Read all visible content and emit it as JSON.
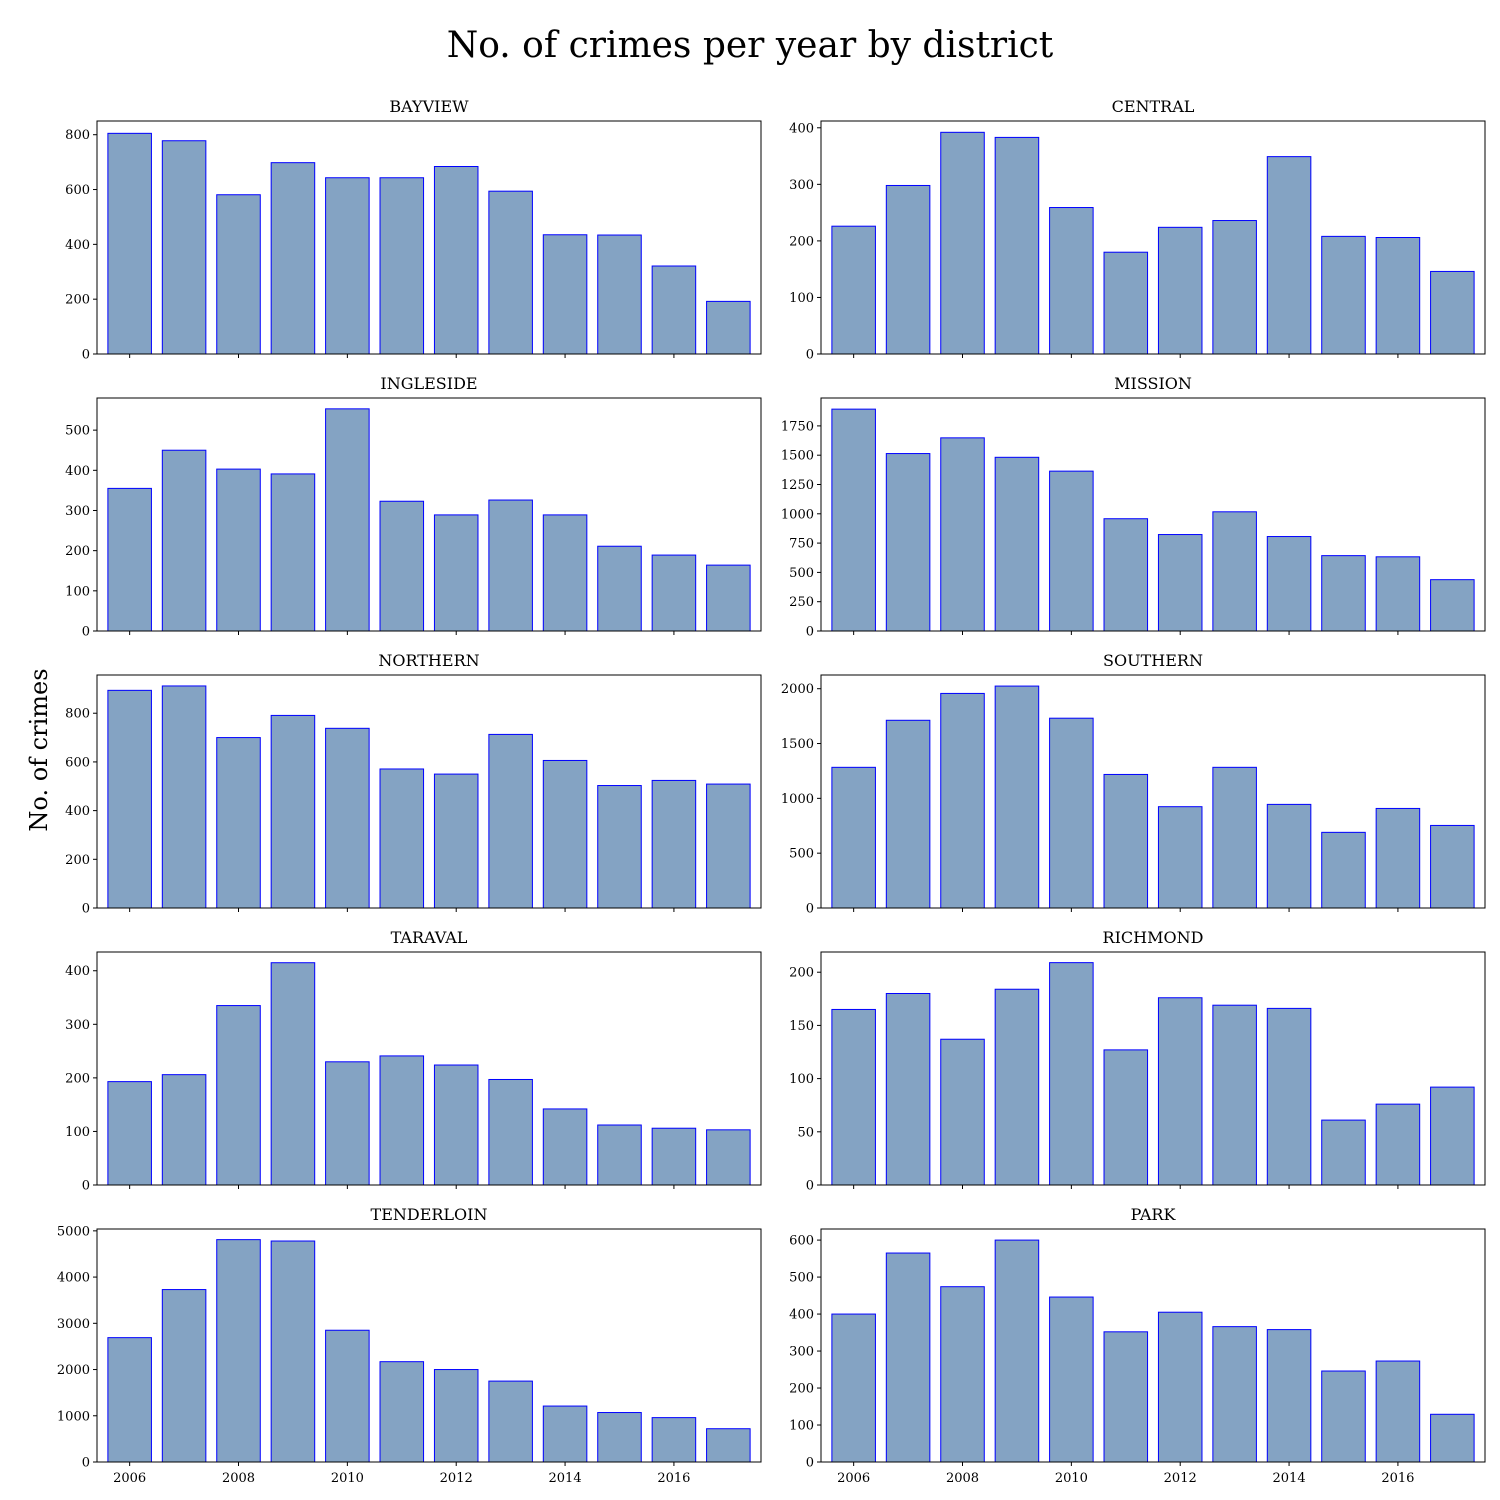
{
  "figure": {
    "title": "No. of crimes per year by district",
    "ylabel": "No. of crimes",
    "bar_fill": "#84a3c3",
    "bar_edge": "#0000ff"
  },
  "chart_data": [
    {
      "type": "bar",
      "title": "BAYVIEW",
      "x": [
        2006,
        2007,
        2008,
        2009,
        2010,
        2011,
        2012,
        2013,
        2014,
        2015,
        2016,
        2017
      ],
      "values": [
        805,
        778,
        581,
        698,
        643,
        643,
        684,
        594,
        435,
        434,
        321,
        192
      ],
      "ylim": [
        0,
        850
      ],
      "yticks": [
        0,
        200,
        400,
        600,
        800
      ],
      "xticks": [
        2006,
        2008,
        2010,
        2012,
        2014,
        2016
      ],
      "show_xtick_labels": false
    },
    {
      "type": "bar",
      "title": "CENTRAL",
      "x": [
        2006,
        2007,
        2008,
        2009,
        2010,
        2011,
        2012,
        2013,
        2014,
        2015,
        2016,
        2017
      ],
      "values": [
        226,
        298,
        392,
        383,
        259,
        180,
        224,
        236,
        349,
        208,
        206,
        146
      ],
      "ylim": [
        0,
        412
      ],
      "yticks": [
        0,
        100,
        200,
        300,
        400
      ],
      "xticks": [
        2006,
        2008,
        2010,
        2012,
        2014,
        2016
      ],
      "show_xtick_labels": false
    },
    {
      "type": "bar",
      "title": "INGLESIDE",
      "x": [
        2006,
        2007,
        2008,
        2009,
        2010,
        2011,
        2012,
        2013,
        2014,
        2015,
        2016,
        2017
      ],
      "values": [
        355,
        450,
        403,
        391,
        553,
        323,
        289,
        326,
        289,
        211,
        189,
        164
      ],
      "ylim": [
        0,
        580
      ],
      "yticks": [
        0,
        100,
        200,
        300,
        400,
        500
      ],
      "xticks": [
        2006,
        2008,
        2010,
        2012,
        2014,
        2016
      ],
      "show_xtick_labels": false
    },
    {
      "type": "bar",
      "title": "MISSION",
      "x": [
        2006,
        2007,
        2008,
        2009,
        2010,
        2011,
        2012,
        2013,
        2014,
        2015,
        2016,
        2017
      ],
      "values": [
        1893,
        1514,
        1648,
        1482,
        1364,
        958,
        823,
        1017,
        806,
        643,
        633,
        438
      ],
      "ylim": [
        0,
        1988
      ],
      "yticks": [
        0,
        250,
        500,
        750,
        1000,
        1250,
        1500,
        1750
      ],
      "xticks": [
        2006,
        2008,
        2010,
        2012,
        2014,
        2016
      ],
      "show_xtick_labels": false
    },
    {
      "type": "bar",
      "title": "NORTHERN",
      "x": [
        2006,
        2007,
        2008,
        2009,
        2010,
        2011,
        2012,
        2013,
        2014,
        2015,
        2016,
        2017
      ],
      "values": [
        894,
        912,
        700,
        791,
        738,
        571,
        550,
        713,
        606,
        503,
        524,
        509
      ],
      "ylim": [
        0,
        957
      ],
      "yticks": [
        0,
        200,
        400,
        600,
        800
      ],
      "xticks": [
        2006,
        2008,
        2010,
        2012,
        2014,
        2016
      ],
      "show_xtick_labels": false
    },
    {
      "type": "bar",
      "title": "SOUTHERN",
      "x": [
        2006,
        2007,
        2008,
        2009,
        2010,
        2011,
        2012,
        2013,
        2014,
        2015,
        2016,
        2017
      ],
      "values": [
        1283,
        1712,
        1957,
        2024,
        1731,
        1218,
        924,
        1283,
        945,
        690,
        908,
        753
      ],
      "ylim": [
        0,
        2125
      ],
      "yticks": [
        0,
        500,
        1000,
        1500,
        2000
      ],
      "xticks": [
        2006,
        2008,
        2010,
        2012,
        2014,
        2016
      ],
      "show_xtick_labels": false
    },
    {
      "type": "bar",
      "title": "TARAVAL",
      "x": [
        2006,
        2007,
        2008,
        2009,
        2010,
        2011,
        2012,
        2013,
        2014,
        2015,
        2016,
        2017
      ],
      "values": [
        193,
        206,
        335,
        415,
        230,
        241,
        224,
        197,
        142,
        112,
        106,
        103
      ],
      "ylim": [
        0,
        435
      ],
      "yticks": [
        0,
        100,
        200,
        300,
        400
      ],
      "xticks": [
        2006,
        2008,
        2010,
        2012,
        2014,
        2016
      ],
      "show_xtick_labels": false
    },
    {
      "type": "bar",
      "title": "RICHMOND",
      "x": [
        2006,
        2007,
        2008,
        2009,
        2010,
        2011,
        2012,
        2013,
        2014,
        2015,
        2016,
        2017
      ],
      "values": [
        165,
        180,
        137,
        184,
        209,
        127,
        176,
        169,
        166,
        61,
        76,
        92
      ],
      "ylim": [
        0,
        219
      ],
      "yticks": [
        0,
        50,
        100,
        150,
        200
      ],
      "xticks": [
        2006,
        2008,
        2010,
        2012,
        2014,
        2016
      ],
      "show_xtick_labels": false
    },
    {
      "type": "bar",
      "title": "TENDERLOIN",
      "x": [
        2006,
        2007,
        2008,
        2009,
        2010,
        2011,
        2012,
        2013,
        2014,
        2015,
        2016,
        2017
      ],
      "values": [
        2690,
        3730,
        4810,
        4780,
        2850,
        2170,
        2000,
        1750,
        1210,
        1070,
        960,
        720
      ],
      "ylim": [
        0,
        5040
      ],
      "yticks": [
        0,
        1000,
        2000,
        3000,
        4000,
        5000
      ],
      "xticks": [
        2006,
        2008,
        2010,
        2012,
        2014,
        2016
      ],
      "show_xtick_labels": true
    },
    {
      "type": "bar",
      "title": "PARK",
      "x": [
        2006,
        2007,
        2008,
        2009,
        2010,
        2011,
        2012,
        2013,
        2014,
        2015,
        2016,
        2017
      ],
      "values": [
        400,
        565,
        474,
        600,
        446,
        352,
        405,
        366,
        358,
        246,
        273,
        129
      ],
      "ylim": [
        0,
        630
      ],
      "yticks": [
        0,
        100,
        200,
        300,
        400,
        500,
        600
      ],
      "xticks": [
        2006,
        2008,
        2010,
        2012,
        2014,
        2016
      ],
      "show_xtick_labels": true
    }
  ]
}
